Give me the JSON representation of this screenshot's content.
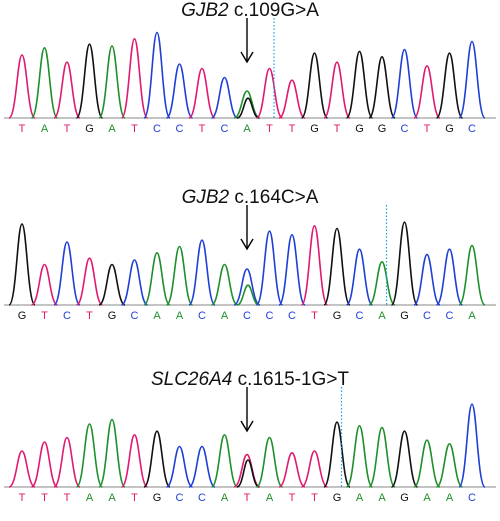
{
  "colors": {
    "A": "#1f8f2c",
    "C": "#1f3fd6",
    "G": "#111111",
    "T": "#e01a70",
    "cursor": "#1aa3d9",
    "baseline": "#8a8a8a"
  },
  "panels": [
    {
      "gene": "GJB2",
      "variant": "c.109G>A",
      "sequence": [
        "T",
        "A",
        "T",
        "G",
        "A",
        "T",
        "C",
        "C",
        "T",
        "C",
        "A",
        "T",
        "T",
        "G",
        "T",
        "G",
        "G",
        "C",
        "T",
        "G",
        "C"
      ],
      "variant_base_index": 10,
      "heterozygous_second_base": "G"
    },
    {
      "gene": "GJB2",
      "variant": "c.164C>A",
      "sequence": [
        "G",
        "T",
        "C",
        "T",
        "G",
        "C",
        "A",
        "A",
        "C",
        "A",
        "C",
        "C",
        "C",
        "T",
        "G",
        "C",
        "A",
        "G",
        "C",
        "C",
        "A"
      ],
      "variant_base_index": 10,
      "heterozygous_second_base": "A"
    },
    {
      "gene": "SLC26A4",
      "variant": "c.1615-1G>T",
      "sequence": [
        "T",
        "T",
        "T",
        "A",
        "A",
        "T",
        "G",
        "C",
        "C",
        "A",
        "T",
        "A",
        "T",
        "T",
        "G",
        "A",
        "A",
        "G",
        "A",
        "A",
        "C"
      ],
      "variant_base_index": 10,
      "heterozygous_second_base": "G"
    }
  ],
  "chart_data": {
    "type": "chromatogram",
    "panels": [
      {
        "title": "GJB2 c.109G>A",
        "bases": [
          "T",
          "A",
          "T",
          "G",
          "A",
          "T",
          "C",
          "C",
          "T",
          "C",
          "A",
          "T",
          "T",
          "G",
          "T",
          "G",
          "G",
          "C",
          "T",
          "G",
          "C"
        ],
        "peak_heights": [
          0.7,
          0.78,
          0.62,
          0.82,
          0.8,
          0.88,
          0.95,
          0.6,
          0.55,
          0.45,
          0.3,
          0.55,
          0.42,
          0.72,
          0.62,
          0.74,
          0.68,
          0.76,
          0.58,
          0.72,
          0.85
        ],
        "het_peak_heights": [
          0,
          0,
          0,
          0,
          0,
          0,
          0,
          0,
          0,
          0,
          0.22,
          0,
          0,
          0,
          0,
          0,
          0,
          0,
          0,
          0,
          0
        ],
        "variant_index": 10
      },
      {
        "title": "GJB2 c.164C>A",
        "bases": [
          "G",
          "T",
          "C",
          "T",
          "G",
          "C",
          "A",
          "A",
          "C",
          "A",
          "C",
          "C",
          "C",
          "T",
          "G",
          "C",
          "A",
          "G",
          "C",
          "C",
          "A"
        ],
        "peak_heights": [
          0.9,
          0.45,
          0.7,
          0.52,
          0.45,
          0.5,
          0.58,
          0.65,
          0.72,
          0.45,
          0.4,
          0.82,
          0.78,
          0.88,
          0.85,
          0.62,
          0.48,
          0.92,
          0.56,
          0.62,
          0.66
        ],
        "het_peak_heights": [
          0,
          0,
          0,
          0,
          0,
          0,
          0,
          0,
          0,
          0,
          0.22,
          0,
          0,
          0,
          0,
          0,
          0,
          0,
          0,
          0,
          0
        ],
        "variant_index": 10
      },
      {
        "title": "SLC26A4 c.1615-1G>T",
        "bases": [
          "T",
          "T",
          "T",
          "A",
          "A",
          "T",
          "G",
          "C",
          "C",
          "A",
          "T",
          "A",
          "T",
          "T",
          "G",
          "A",
          "A",
          "G",
          "A",
          "A",
          "C"
        ],
        "peak_heights": [
          0.4,
          0.5,
          0.55,
          0.7,
          0.75,
          0.58,
          0.62,
          0.45,
          0.45,
          0.58,
          0.36,
          0.55,
          0.38,
          0.4,
          0.72,
          0.68,
          0.66,
          0.62,
          0.52,
          0.48,
          0.92
        ],
        "het_peak_heights": [
          0,
          0,
          0,
          0,
          0,
          0,
          0,
          0,
          0,
          0,
          0.3,
          0,
          0,
          0,
          0,
          0,
          0,
          0,
          0,
          0,
          0
        ],
        "variant_index": 10
      }
    ]
  }
}
